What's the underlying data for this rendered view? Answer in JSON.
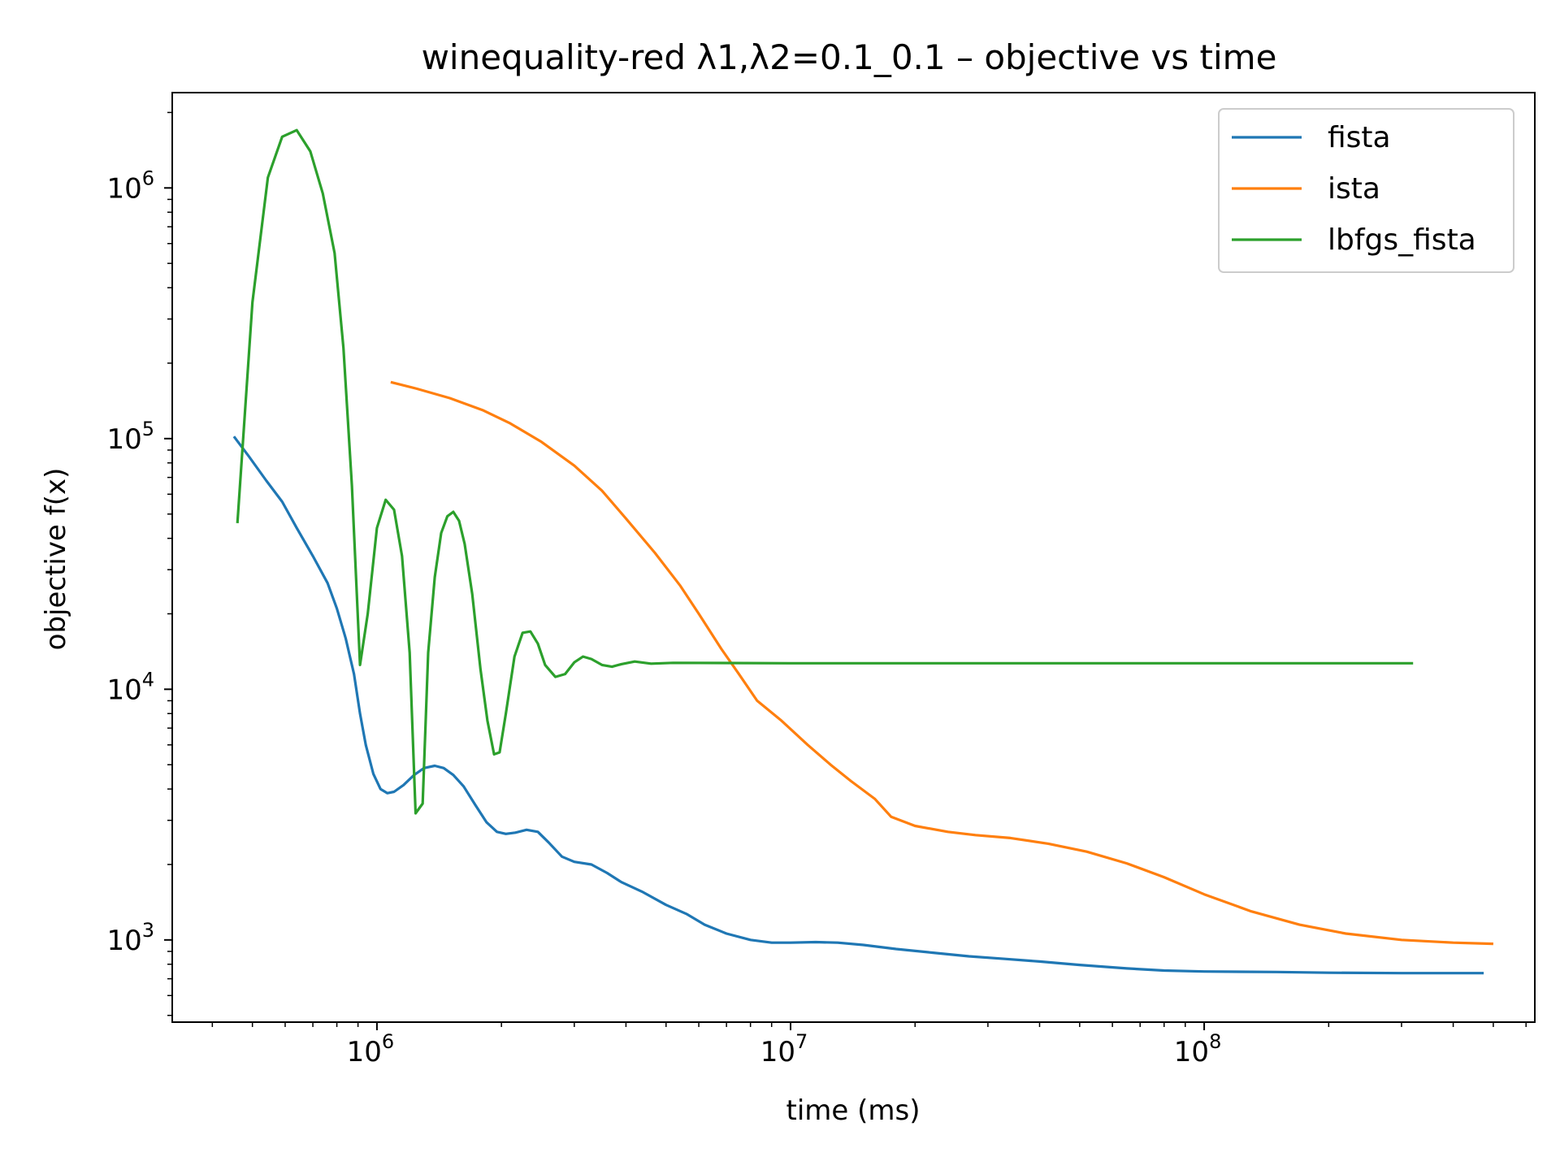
{
  "chart_data": {
    "type": "line",
    "title": "winequality-red   λ1,λ2=0.1_0.1  –  objective vs time",
    "xlabel": "time (ms)",
    "ylabel": "objective f(x)",
    "xscale": "log",
    "yscale": "log",
    "xlim": [
      320000,
      630000000
    ],
    "ylim": [
      470,
      2400000
    ],
    "x_ticks": [
      {
        "value": 1000000,
        "base": "10",
        "exp": "6"
      },
      {
        "value": 10000000,
        "base": "10",
        "exp": "7"
      },
      {
        "value": 100000000,
        "base": "10",
        "exp": "8"
      }
    ],
    "y_ticks": [
      {
        "value": 1000,
        "base": "10",
        "exp": "3"
      },
      {
        "value": 10000,
        "base": "10",
        "exp": "4"
      },
      {
        "value": 100000,
        "base": "10",
        "exp": "5"
      },
      {
        "value": 1000000,
        "base": "10",
        "exp": "6"
      }
    ],
    "grid": false,
    "legend_position": "top-right",
    "series": [
      {
        "name": "fista",
        "color": "#1f77b4",
        "points": [
          [
            451000,
            102000
          ],
          [
            490000,
            85000
          ],
          [
            540000,
            68000
          ],
          [
            590000,
            56000
          ],
          [
            640000,
            44000
          ],
          [
            700000,
            34000
          ],
          [
            760000,
            26500
          ],
          [
            800000,
            21000
          ],
          [
            840000,
            16000
          ],
          [
            880000,
            11500
          ],
          [
            910000,
            8000
          ],
          [
            940000,
            6000
          ],
          [
            980000,
            4600
          ],
          [
            1020000,
            4000
          ],
          [
            1060000,
            3850
          ],
          [
            1100000,
            3900
          ],
          [
            1160000,
            4150
          ],
          [
            1230000,
            4550
          ],
          [
            1300000,
            4850
          ],
          [
            1380000,
            4950
          ],
          [
            1450000,
            4850
          ],
          [
            1530000,
            4550
          ],
          [
            1620000,
            4100
          ],
          [
            1730000,
            3450
          ],
          [
            1840000,
            2950
          ],
          [
            1950000,
            2700
          ],
          [
            2050000,
            2650
          ],
          [
            2160000,
            2680
          ],
          [
            2300000,
            2750
          ],
          [
            2450000,
            2700
          ],
          [
            2600000,
            2450
          ],
          [
            2800000,
            2150
          ],
          [
            3000000,
            2050
          ],
          [
            3300000,
            2000
          ],
          [
            3600000,
            1850
          ],
          [
            3900000,
            1700
          ],
          [
            4400000,
            1550
          ],
          [
            5000000,
            1380
          ],
          [
            5600000,
            1270
          ],
          [
            6200000,
            1150
          ],
          [
            7000000,
            1060
          ],
          [
            8000000,
            1000
          ],
          [
            9000000,
            975
          ],
          [
            10000000,
            975
          ],
          [
            11500000,
            980
          ],
          [
            13000000,
            975
          ],
          [
            15000000,
            955
          ],
          [
            18000000,
            920
          ],
          [
            22000000,
            890
          ],
          [
            27000000,
            860
          ],
          [
            33000000,
            840
          ],
          [
            40000000,
            820
          ],
          [
            50000000,
            795
          ],
          [
            65000000,
            770
          ],
          [
            80000000,
            755
          ],
          [
            100000000,
            748
          ],
          [
            150000000,
            745
          ],
          [
            200000000,
            740
          ],
          [
            300000000,
            737
          ],
          [
            474000000,
            737
          ]
        ]
      },
      {
        "name": "ista",
        "color": "#ff7f0e",
        "points": [
          [
            1080000,
            168000
          ],
          [
            1250000,
            158000
          ],
          [
            1500000,
            145000
          ],
          [
            1800000,
            130000
          ],
          [
            2100000,
            115000
          ],
          [
            2500000,
            97000
          ],
          [
            3000000,
            78000
          ],
          [
            3500000,
            62000
          ],
          [
            4000000,
            48000
          ],
          [
            4700000,
            35000
          ],
          [
            5400000,
            26000
          ],
          [
            6000000,
            20000
          ],
          [
            6800000,
            14500
          ],
          [
            7500000,
            11500
          ],
          [
            8300000,
            9000
          ],
          [
            9500000,
            7500
          ],
          [
            11000000,
            6000
          ],
          [
            12500000,
            5000
          ],
          [
            14000000,
            4300
          ],
          [
            16000000,
            3650
          ],
          [
            17500000,
            3100
          ],
          [
            20000000,
            2850
          ],
          [
            24000000,
            2700
          ],
          [
            28000000,
            2620
          ],
          [
            34000000,
            2550
          ],
          [
            42000000,
            2420
          ],
          [
            52000000,
            2250
          ],
          [
            65000000,
            2020
          ],
          [
            80000000,
            1780
          ],
          [
            100000000,
            1520
          ],
          [
            130000000,
            1300
          ],
          [
            170000000,
            1150
          ],
          [
            220000000,
            1060
          ],
          [
            300000000,
            1000
          ],
          [
            400000000,
            975
          ],
          [
            500000000,
            965
          ]
        ]
      },
      {
        "name": "lbfgs_fista",
        "color": "#2ca02c",
        "points": [
          [
            460000,
            46000
          ],
          [
            500000,
            350000
          ],
          [
            545000,
            1100000
          ],
          [
            590000,
            1600000
          ],
          [
            640000,
            1700000
          ],
          [
            690000,
            1400000
          ],
          [
            740000,
            950000
          ],
          [
            790000,
            550000
          ],
          [
            830000,
            230000
          ],
          [
            870000,
            65000
          ],
          [
            910000,
            12500
          ],
          [
            950000,
            20000
          ],
          [
            1000000,
            44000
          ],
          [
            1050000,
            57000
          ],
          [
            1100000,
            52000
          ],
          [
            1150000,
            34000
          ],
          [
            1200000,
            14000
          ],
          [
            1240000,
            3200
          ],
          [
            1290000,
            3500
          ],
          [
            1330000,
            14000
          ],
          [
            1380000,
            28000
          ],
          [
            1430000,
            42000
          ],
          [
            1480000,
            49000
          ],
          [
            1530000,
            51000
          ],
          [
            1580000,
            47000
          ],
          [
            1630000,
            38000
          ],
          [
            1700000,
            24000
          ],
          [
            1780000,
            12000
          ],
          [
            1850000,
            7500
          ],
          [
            1920000,
            5500
          ],
          [
            1980000,
            5600
          ],
          [
            2050000,
            8000
          ],
          [
            2150000,
            13500
          ],
          [
            2250000,
            16800
          ],
          [
            2350000,
            17000
          ],
          [
            2450000,
            15200
          ],
          [
            2550000,
            12500
          ],
          [
            2700000,
            11200
          ],
          [
            2850000,
            11500
          ],
          [
            3000000,
            12800
          ],
          [
            3150000,
            13500
          ],
          [
            3300000,
            13200
          ],
          [
            3500000,
            12500
          ],
          [
            3700000,
            12300
          ],
          [
            3900000,
            12600
          ],
          [
            4200000,
            12900
          ],
          [
            4600000,
            12650
          ],
          [
            5200000,
            12750
          ],
          [
            10000000,
            12700
          ],
          [
            50000000,
            12700
          ],
          [
            100000000,
            12700
          ],
          [
            320000000,
            12700
          ]
        ]
      }
    ]
  }
}
